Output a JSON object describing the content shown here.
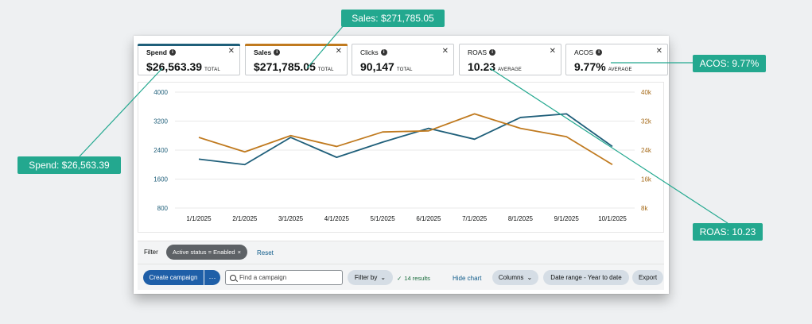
{
  "metrics": [
    {
      "name": "Spend",
      "value": "$26,563.39",
      "unit": "TOTAL",
      "color": "#1f5f7a",
      "info": true
    },
    {
      "name": "Sales",
      "value": "$271,785.05",
      "unit": "TOTAL",
      "color": "#c07a1f",
      "info": true
    },
    {
      "name": "Clicks",
      "value": "90,147",
      "unit": "TOTAL",
      "color": "",
      "info": true
    },
    {
      "name": "ROAS",
      "value": "10.23",
      "unit": "AVERAGE",
      "color": "",
      "info": true
    },
    {
      "name": "ACOS",
      "value": "9.77%",
      "unit": "AVERAGE",
      "color": "",
      "info": true
    }
  ],
  "close_symbol": "✕",
  "info_symbol": "i",
  "chart_data": {
    "type": "line",
    "x": [
      "1/1/2025",
      "2/1/2025",
      "3/1/2025",
      "4/1/2025",
      "5/1/2025",
      "6/1/2025",
      "7/1/2025",
      "8/1/2025",
      "9/1/2025",
      "10/1/2025"
    ],
    "series": [
      {
        "name": "Spend",
        "axis": "left",
        "color": "#1f5f7a",
        "values": [
          2150,
          2000,
          2750,
          2200,
          2620,
          3000,
          2700,
          3300,
          3400,
          2500
        ]
      },
      {
        "name": "Sales",
        "axis": "right",
        "color": "#c07a1f",
        "values": [
          27500,
          23500,
          28000,
          25000,
          29000,
          29300,
          34000,
          30000,
          27700,
          20000
        ]
      }
    ],
    "y_left": {
      "ticks": [
        "4000",
        "3200",
        "2400",
        "1600",
        "800"
      ],
      "lim": [
        800,
        4000
      ]
    },
    "y_right": {
      "ticks": [
        "40k",
        "32k",
        "24k",
        "16k",
        "8k"
      ],
      "lim": [
        8000,
        40000
      ]
    },
    "grid": true
  },
  "filter": {
    "label": "Filter",
    "chip": "Active status = Enabled",
    "chip_close": "×",
    "reset": "Reset"
  },
  "toolbar": {
    "create_campaign": "Create campaign",
    "more": "···",
    "search_placeholder": "Find a campaign",
    "filter_by": "Filter by",
    "results_check": "✓",
    "results": "14 results",
    "hide_chart": "Hide chart",
    "columns": "Columns",
    "date_range": "Date range - Year to date",
    "export": "Export",
    "chevron": "⌄"
  },
  "callouts": {
    "sales": "Sales: $271,785.05",
    "spend": "Spend: $26,563.39",
    "acos": "ACOS: 9.77%",
    "roas": "ROAS: 10.23"
  },
  "colors": {
    "accent": "#23a88f",
    "primary": "#1f5fa8"
  }
}
